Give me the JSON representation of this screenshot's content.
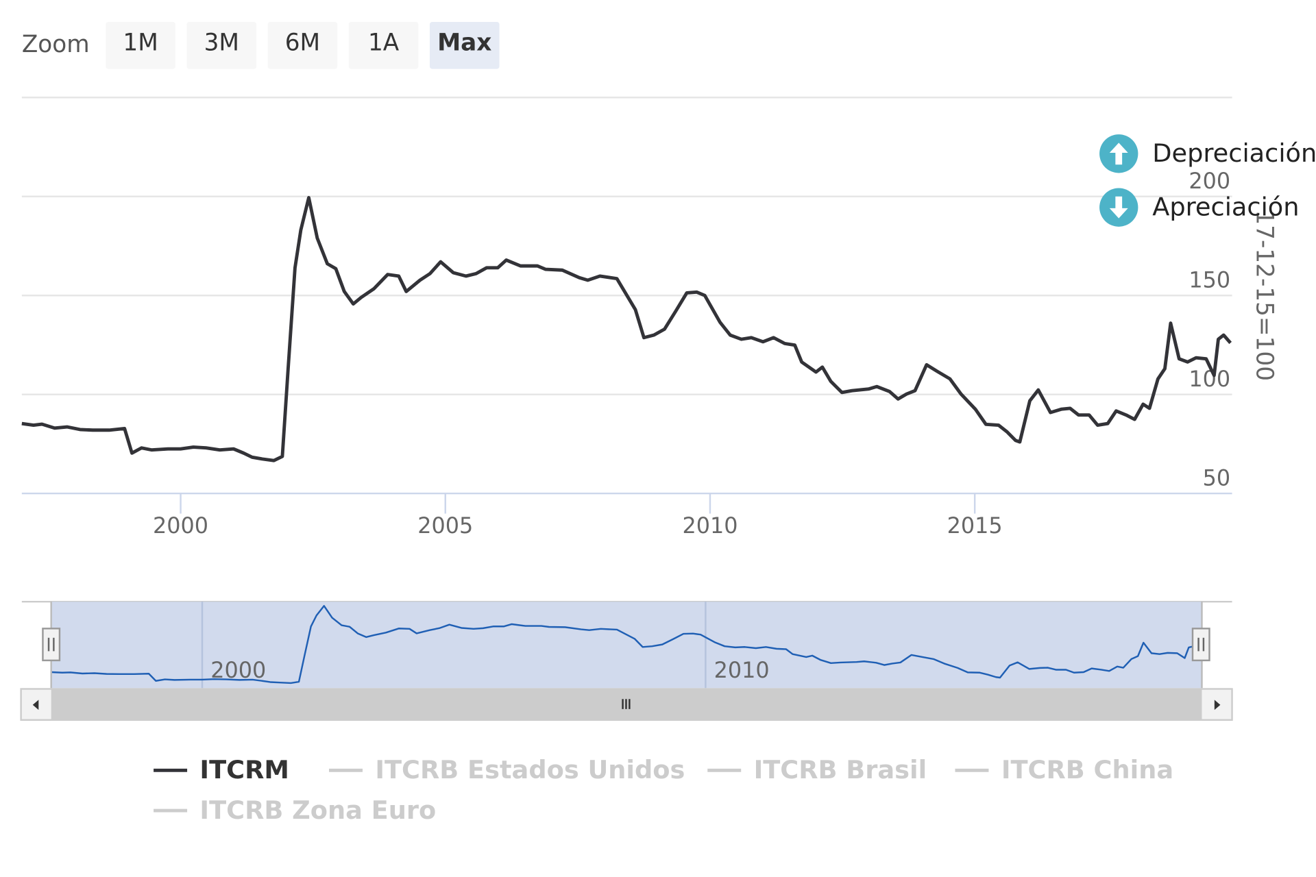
{
  "chart_data": {
    "type": "line",
    "zoom_label": "Zoom",
    "zoom_buttons": [
      "1M",
      "3M",
      "6M",
      "1A",
      "Max"
    ],
    "zoom_selected": 4,
    "y_axis_title": "17-12-15=100",
    "annotations": [
      "Depreciación",
      "Apreciación"
    ],
    "xlim": [
      1997.0,
      2019.86
    ],
    "xticks": [
      2000,
      2005,
      2010,
      2015
    ],
    "ylim": [
      50,
      250
    ],
    "yticks": [
      50,
      100,
      150,
      200
    ],
    "grid": true,
    "x": [
      1997.0,
      1997.22,
      1997.38,
      1997.62,
      1997.86,
      1998.1,
      1998.34,
      1998.65,
      1998.94,
      1999.08,
      1999.26,
      1999.45,
      1999.76,
      2000.0,
      2000.24,
      2000.48,
      2000.74,
      2001.0,
      2001.19,
      2001.35,
      2001.54,
      2001.76,
      2001.92,
      2002.03,
      2002.16,
      2002.27,
      2002.42,
      2002.58,
      2002.77,
      2002.93,
      2003.09,
      2003.26,
      2003.41,
      2003.65,
      2003.91,
      2004.12,
      2004.26,
      2004.52,
      2004.71,
      2004.91,
      2005.15,
      2005.39,
      2005.58,
      2005.78,
      2005.99,
      2006.15,
      2006.42,
      2006.74,
      2006.89,
      2007.21,
      2007.53,
      2007.69,
      2007.92,
      2008.24,
      2008.4,
      2008.59,
      2008.75,
      2008.94,
      2009.14,
      2009.35,
      2009.56,
      2009.75,
      2009.9,
      2010.19,
      2010.38,
      2010.59,
      2010.78,
      2011.0,
      2011.2,
      2011.41,
      2011.6,
      2011.73,
      2012.0,
      2012.12,
      2012.28,
      2012.49,
      2012.68,
      2013.0,
      2013.15,
      2013.39,
      2013.55,
      2013.71,
      2013.87,
      2014.09,
      2014.29,
      2014.53,
      2014.74,
      2015.01,
      2015.21,
      2015.45,
      2015.61,
      2015.77,
      2015.85,
      2016.04,
      2016.2,
      2016.43,
      2016.64,
      2016.8,
      2016.96,
      2017.16,
      2017.32,
      2017.51,
      2017.67,
      2017.86,
      2018.02,
      2018.18,
      2018.3,
      2018.46,
      2018.59,
      2018.7,
      2018.86,
      2019.02,
      2019.18,
      2019.37,
      2019.52,
      2019.6,
      2019.7,
      2019.83
    ],
    "series": [
      {
        "name": "ITCRM",
        "color": "#333338",
        "values": [
          85.3,
          84.5,
          85,
          83,
          83.6,
          82.3,
          82,
          82,
          82.8,
          70.4,
          73,
          72,
          72.5,
          72.5,
          73.4,
          73,
          72,
          72.5,
          70.4,
          68.3,
          67.4,
          66.6,
          68.7,
          113,
          164,
          183,
          199.4,
          179,
          166,
          163.5,
          152,
          145.7,
          149,
          153.4,
          160.6,
          159.8,
          152,
          157.7,
          161,
          167,
          161.5,
          159.8,
          161,
          164,
          164,
          167.9,
          164.9,
          164.9,
          163.2,
          162.8,
          159,
          157.7,
          159.8,
          158.5,
          151.3,
          142.8,
          128.7,
          130,
          133,
          142,
          151.3,
          151.7,
          150,
          136.4,
          130,
          127.9,
          128.7,
          126.6,
          128.7,
          125.7,
          124.9,
          116.4,
          111.3,
          113.8,
          106.6,
          101,
          101.9,
          102.8,
          104,
          101.5,
          97.7,
          100.2,
          101.9,
          115,
          111.7,
          107.9,
          100.2,
          92.6,
          84.9,
          84.5,
          81.1,
          76.8,
          76,
          96.8,
          102.3,
          90.9,
          92.6,
          93,
          89.6,
          89.6,
          84.5,
          85.3,
          91.7,
          89.6,
          87.4,
          95.1,
          93,
          107.9,
          113,
          136,
          118,
          116.4,
          118.5,
          118,
          109.6,
          127.9,
          130,
          126
        ]
      }
    ],
    "hidden_series": [
      {
        "name": "ITCRB Estados Unidos",
        "color": "#cccccc"
      },
      {
        "name": "ITCRB Brasil",
        "color": "#cccccc"
      },
      {
        "name": "ITCRB China",
        "color": "#cccccc"
      },
      {
        "name": "ITCRB Zona Euro",
        "color": "#cccccc"
      }
    ],
    "navigator": {
      "xticks": [
        2000,
        2010
      ],
      "color": "#1f5fb4"
    }
  }
}
